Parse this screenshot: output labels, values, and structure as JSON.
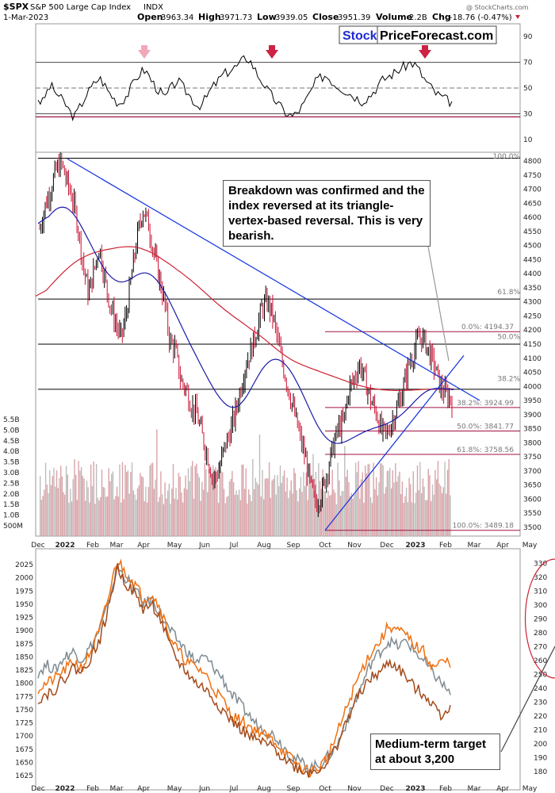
{
  "header": {
    "symbol": "$SPX",
    "name": "S&P 500 Large Cap Index",
    "exchange": "INDX",
    "date": "1-Mar-2023",
    "open_label": "Open",
    "open": "3963.34",
    "high_label": "High",
    "high": "3971.73",
    "low_label": "Low",
    "low": "3939.05",
    "close_label": "Close",
    "close": "3951.39",
    "volume_label": "Volume",
    "volume": "2.2B",
    "chg_label": "Chg",
    "chg": "-18.76 (-0.47%)",
    "copyright": "@ StockCharts.com"
  },
  "brand": {
    "part1": "Stock",
    "part2": "PriceForecast.com"
  },
  "annotations": {
    "main_note": "Breakdown was confirmed and the index reversed at its triangle-vertex-based reversal. This is very bearish.",
    "bottom_note": "Medium-term target at about 3,200"
  },
  "colors": {
    "price_up": "#000000",
    "price_down": "#cc1133",
    "ma_short": "#1a1aa8",
    "ma_long": "#cc2233",
    "trendline": "#1030e0",
    "fib_line": "#a01040",
    "volume": "#d9a3a8",
    "rsi_arrow": "#cc2244",
    "rsi_arrow_light": "#f0a8b8",
    "gold_series": "#7f8b92",
    "series_orange": "#f07010",
    "series_brown": "#a24a1a"
  },
  "chart_data": [
    {
      "type": "line",
      "name": "RSI",
      "yticks": [
        10,
        30,
        50,
        70,
        90
      ],
      "ylim": [
        0,
        100
      ],
      "levels": [
        30,
        50,
        70
      ],
      "values": [
        42,
        38,
        46,
        52,
        48,
        44,
        40,
        36,
        30,
        28,
        34,
        40,
        46,
        50,
        55,
        58,
        54,
        48,
        44,
        40,
        38,
        42,
        46,
        52,
        58,
        62,
        64,
        60,
        54,
        50,
        46,
        42,
        48,
        52,
        56,
        52,
        48,
        44,
        40,
        36,
        38,
        42,
        48,
        52,
        56,
        60,
        62,
        64,
        66,
        68,
        72,
        74,
        70,
        64,
        58,
        54,
        48,
        44,
        40,
        36,
        32,
        30,
        28,
        30,
        34,
        38,
        44,
        50,
        56,
        58,
        60,
        58,
        54,
        52,
        50,
        48,
        46,
        44,
        42,
        40,
        42,
        44,
        48,
        52,
        56,
        58,
        60,
        62,
        64,
        66,
        68,
        70,
        68,
        64,
        58,
        54,
        50,
        46,
        44,
        42,
        40,
        39
      ],
      "arrows": [
        "Apr",
        "Aug",
        "Feb"
      ]
    },
    {
      "type": "candlestick",
      "name": "$SPX",
      "ylim": [
        3480,
        4820
      ],
      "yticks": [
        3500,
        3550,
        3600,
        3650,
        3700,
        3750,
        3800,
        3850,
        3900,
        3950,
        4000,
        4050,
        4100,
        4150,
        4200,
        4250,
        4300,
        4350,
        4400,
        4450,
        4500,
        4550,
        4600,
        4650,
        4700,
        4750,
        4800
      ],
      "volume_ticks": [
        "500M",
        "1.0B",
        "1.5B",
        "2.0B",
        "2.5B",
        "3.0B",
        "3.5B",
        "4.0B",
        "4.5B",
        "5.0B",
        "5.5B"
      ],
      "x_labels": [
        "Dec",
        "2022",
        "Feb",
        "Mar",
        "Apr",
        "May",
        "Jun",
        "Jul",
        "Aug",
        "Sep",
        "Oct",
        "Nov",
        "Dec",
        "2023",
        "Feb",
        "Mar",
        "Apr",
        "May"
      ],
      "close_path": [
        4560,
        4640,
        4700,
        4766,
        4793,
        4726,
        4670,
        4577,
        4432,
        4326,
        4410,
        4500,
        4380,
        4288,
        4225,
        4170,
        4260,
        4400,
        4530,
        4631,
        4580,
        4480,
        4390,
        4300,
        4160,
        4130,
        4020,
        3990,
        3930,
        3900,
        3820,
        3750,
        3666,
        3700,
        3780,
        3830,
        3900,
        3990,
        4080,
        4130,
        4200,
        4280,
        4300,
        4250,
        4150,
        4060,
        3980,
        3900,
        3820,
        3740,
        3640,
        3585,
        3620,
        3700,
        3780,
        3850,
        3870,
        3990,
        4030,
        4080,
        4020,
        3950,
        3910,
        3840,
        3830,
        3880,
        3930,
        3990,
        4080,
        4120,
        4180,
        4160,
        4110,
        4060,
        3990,
        3970,
        3951
      ],
      "ma_short_path": [
        4550,
        4600,
        4640,
        4650,
        4620,
        4560,
        4490,
        4430,
        4380,
        4360,
        4370,
        4400,
        4420,
        4390,
        4340,
        4280,
        4200,
        4140,
        4080,
        4010,
        3960,
        3920,
        3910,
        3950,
        4020,
        4080,
        4110,
        4100,
        4060,
        4000,
        3920,
        3850,
        3800,
        3790,
        3800,
        3820,
        3840,
        3850,
        3860,
        3870,
        3890,
        3920,
        3960,
        3990,
        4000,
        3990,
        3985
      ],
      "ma_long_path": [
        4300,
        4360,
        4420,
        4460,
        4480,
        4490,
        4500,
        4490,
        4460,
        4420,
        4380,
        4330,
        4280,
        4240,
        4200,
        4160,
        4110,
        4080,
        4060,
        4040,
        4020,
        4000,
        3990,
        3985,
        3985,
        3990,
        3990,
        3992
      ],
      "fib_levels": [
        {
          "label": "0.0%: 4194.37",
          "value": 4194.37
        },
        {
          "label": "38.2%: 3924.99",
          "value": 3924.99
        },
        {
          "label": "50.0%: 3841.77",
          "value": 3841.77
        },
        {
          "label": "61.8%: 3758.56",
          "value": 3758.56
        },
        {
          "label": "100.0%: 3489.18",
          "value": 3489.18
        }
      ],
      "fib_right_labels": [
        "100.0%",
        "61.8%",
        "50.0%",
        "38.2%",
        "0.0%"
      ],
      "horizontal_levels": [
        4810,
        4310,
        4150,
        3990
      ]
    },
    {
      "type": "line",
      "name": "comparison",
      "left_ticks": [
        1625,
        1650,
        1675,
        1700,
        1725,
        1750,
        1775,
        1800,
        1825,
        1850,
        1875,
        1900,
        1925,
        1950,
        1975,
        2000,
        2025
      ],
      "right_ticks": [
        180,
        190,
        200,
        210,
        220,
        230,
        240,
        250,
        260,
        270,
        280,
        290,
        300,
        310,
        320,
        330
      ],
      "x_labels": [
        "Dec",
        "2022",
        "Feb",
        "Mar",
        "Apr",
        "May",
        "Jun",
        "Jul",
        "Aug",
        "Sep",
        "Oct",
        "Nov",
        "Dec",
        "2023",
        "Feb",
        "Mar",
        "Apr",
        "May"
      ],
      "series": [
        {
          "values": [
            1820,
            1835,
            1825,
            1850,
            1860,
            1845,
            1870,
            1900,
            1950,
            2020,
            2000,
            1980,
            1950,
            1960,
            1930,
            1900,
            1880,
            1860,
            1840,
            1850,
            1830,
            1810,
            1780,
            1760,
            1740,
            1720,
            1710,
            1700,
            1680,
            1660,
            1650,
            1640,
            1645,
            1660,
            1680,
            1720,
            1760,
            1800,
            1840,
            1860,
            1880,
            1870,
            1880,
            1860,
            1840,
            1820,
            1800,
            1780
          ]
        },
        {
          "values": [
            1790,
            1800,
            1810,
            1825,
            1840,
            1830,
            1860,
            1900,
            1960,
            2035,
            2010,
            1990,
            1960,
            1970,
            1940,
            1890,
            1860,
            1840,
            1830,
            1820,
            1790,
            1770,
            1740,
            1730,
            1720,
            1710,
            1700,
            1690,
            1670,
            1655,
            1640,
            1632,
            1640,
            1660,
            1700,
            1745,
            1790,
            1830,
            1860,
            1880,
            1910,
            1900,
            1890,
            1870,
            1860,
            1830,
            1840,
            1840
          ]
        },
        {
          "values": [
            1770,
            1780,
            1790,
            1810,
            1830,
            1820,
            1850,
            1880,
            1940,
            2020,
            1990,
            1970,
            1940,
            1950,
            1920,
            1870,
            1840,
            1820,
            1800,
            1790,
            1770,
            1750,
            1730,
            1715,
            1700,
            1690,
            1685,
            1675,
            1660,
            1645,
            1635,
            1630,
            1638,
            1650,
            1680,
            1720,
            1760,
            1790,
            1810,
            1820,
            1840,
            1830,
            1810,
            1790,
            1780,
            1760,
            1740,
            1755
          ]
        }
      ]
    }
  ]
}
